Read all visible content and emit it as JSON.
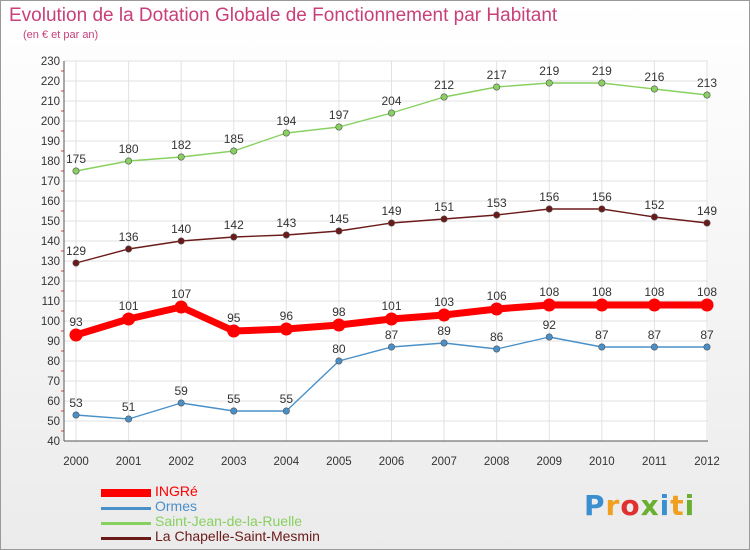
{
  "title": "Evolution de la Dotation Globale de Fonctionnement par Habitant",
  "subtitle": "(en € et par an)",
  "logo": {
    "letters": [
      "P",
      "r",
      "o",
      "x",
      "i",
      "t",
      "i"
    ],
    "colors": [
      "#3a8fd0",
      "#f0a020",
      "#e03030",
      "#6ab030",
      "#3a8fd0",
      "#f0a020",
      "#6ab030"
    ]
  },
  "chart_data": {
    "type": "line",
    "x": [
      2000,
      2001,
      2002,
      2003,
      2004,
      2005,
      2006,
      2007,
      2008,
      2009,
      2010,
      2011,
      2012
    ],
    "ylim": [
      40,
      230
    ],
    "yticks": [
      40,
      50,
      60,
      70,
      80,
      90,
      100,
      110,
      120,
      130,
      140,
      150,
      160,
      170,
      180,
      190,
      200,
      210,
      220,
      230
    ],
    "grid": true,
    "legend_position": "bottom-left",
    "series": [
      {
        "name": "INGRé",
        "color": "#ff0000",
        "values": [
          93,
          101,
          107,
          95,
          96,
          98,
          101,
          103,
          106,
          108,
          108,
          108,
          108
        ]
      },
      {
        "name": "Ormes",
        "color": "#4a90c8",
        "values": [
          53,
          51,
          59,
          55,
          55,
          80,
          87,
          89,
          86,
          92,
          87,
          87,
          87
        ]
      },
      {
        "name": "Saint-Jean-de-la-Ruelle",
        "color": "#88d060",
        "values": [
          175,
          180,
          182,
          185,
          194,
          197,
          204,
          212,
          217,
          219,
          219,
          216,
          213
        ]
      },
      {
        "name": "La Chapelle-Saint-Mesmin",
        "color": "#6b1a1a",
        "values": [
          129,
          136,
          140,
          142,
          143,
          145,
          149,
          151,
          153,
          156,
          156,
          152,
          149
        ]
      }
    ]
  }
}
